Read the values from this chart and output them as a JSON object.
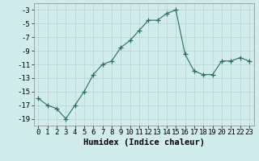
{
  "x": [
    0,
    1,
    2,
    3,
    4,
    5,
    6,
    7,
    8,
    9,
    10,
    11,
    12,
    13,
    14,
    15,
    16,
    17,
    18,
    19,
    20,
    21,
    22,
    23
  ],
  "y": [
    -16,
    -17,
    -17.5,
    -19,
    -17,
    -15,
    -12.5,
    -11,
    -10.5,
    -8.5,
    -7.5,
    -6,
    -4.5,
    -4.5,
    -3.5,
    -3,
    -9.5,
    -12,
    -12.5,
    -12.5,
    -10.5,
    -10.5,
    -10,
    -10.5
  ],
  "line_color": "#2a6e62",
  "marker": "+",
  "marker_size": 4,
  "bg_color": "#d0ecec",
  "grid_major_color": "#b8d0d0",
  "grid_minor_color": "#c8e0e0",
  "xlabel": "Humidex (Indice chaleur)",
  "xlim": [
    -0.5,
    23.5
  ],
  "ylim": [
    -20,
    -2
  ],
  "yticks": [
    -19,
    -17,
    -15,
    -13,
    -11,
    -9,
    -7,
    -5,
    -3
  ],
  "xticks": [
    0,
    1,
    2,
    3,
    4,
    5,
    6,
    7,
    8,
    9,
    10,
    11,
    12,
    13,
    14,
    15,
    16,
    17,
    18,
    19,
    20,
    21,
    22,
    23
  ],
  "tick_font_size": 6.5,
  "xlabel_font_size": 7.5
}
